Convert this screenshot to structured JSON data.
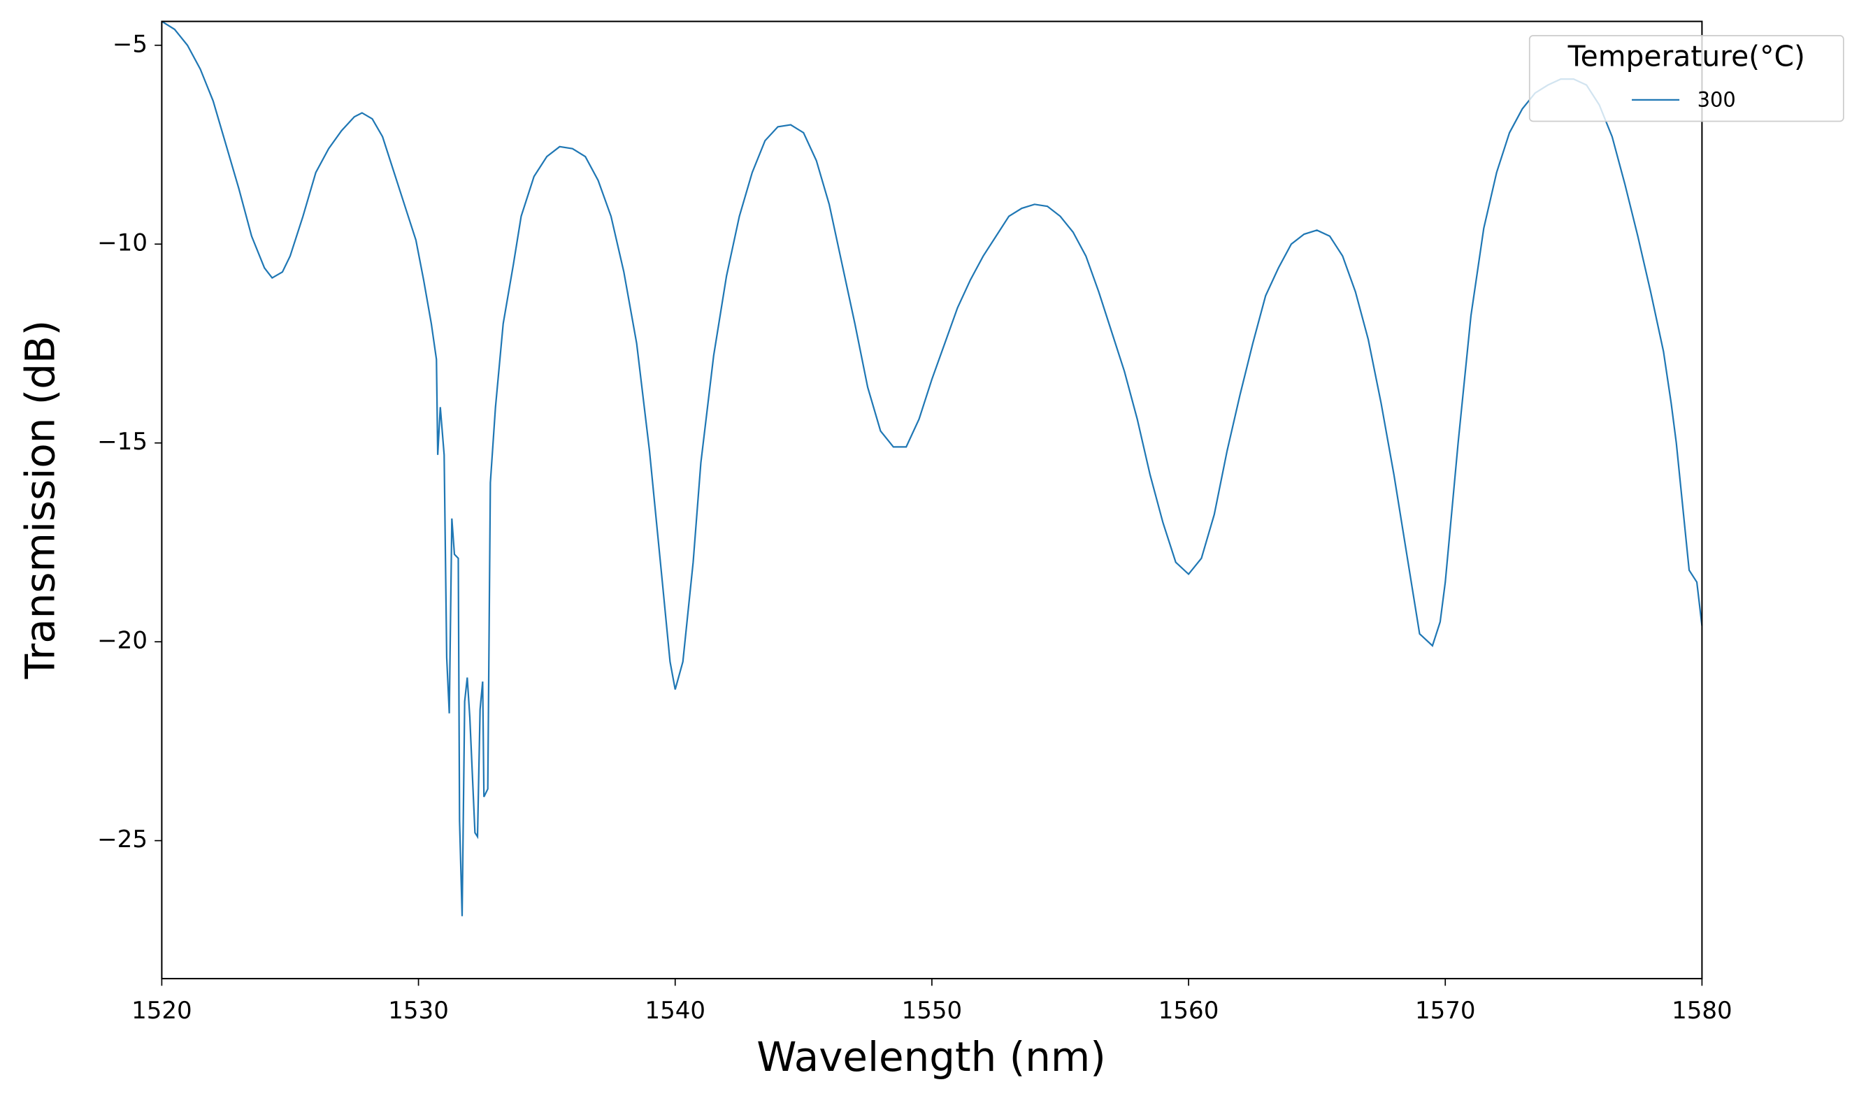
{
  "chart_data": {
    "type": "line",
    "xlabel": "Wavelength (nm)",
    "ylabel": "Transmission (dB)",
    "legend_title": "Temperature(°C)",
    "legend_loc": "upper right",
    "xlim": [
      1520,
      1580
    ],
    "ylim": [
      -28.47,
      -4.4
    ],
    "xticks": [
      1520,
      1530,
      1540,
      1550,
      1560,
      1570,
      1580
    ],
    "yticks": [
      {
        "value": -5,
        "label": "−5"
      },
      {
        "value": -10,
        "label": "−10"
      },
      {
        "value": -15,
        "label": "−15"
      },
      {
        "value": -20,
        "label": "−20"
      },
      {
        "value": -25,
        "label": "−25"
      }
    ],
    "x": [
      1520,
      1520.5,
      1521,
      1521.5,
      1522,
      1522.5,
      1523,
      1523.5,
      1524,
      1524.3,
      1524.7,
      1525,
      1525.5,
      1526,
      1526.5,
      1527,
      1527.5,
      1527.8,
      1528.2,
      1528.6,
      1529,
      1529.5,
      1529.9,
      1530.2,
      1530.5,
      1530.7,
      1530.75,
      1530.85,
      1531,
      1531.1,
      1531.2,
      1531.3,
      1531.4,
      1531.55,
      1531.6,
      1531.7,
      1531.8,
      1531.9,
      1532,
      1532.2,
      1532.3,
      1532.4,
      1532.5,
      1532.55,
      1532.7,
      1532.8,
      1533,
      1533.3,
      1533.7,
      1534,
      1534.5,
      1535,
      1535.5,
      1536,
      1536.5,
      1537,
      1537.5,
      1538,
      1538.5,
      1539,
      1539.5,
      1539.8,
      1540,
      1540.3,
      1540.7,
      1541,
      1541.5,
      1542,
      1542.5,
      1543,
      1543.5,
      1544,
      1544.5,
      1545,
      1545.5,
      1546,
      1546.5,
      1547,
      1547.5,
      1548,
      1548.5,
      1549,
      1549.5,
      1550,
      1550.5,
      1551,
      1551.5,
      1552,
      1552.5,
      1553,
      1553.5,
      1554,
      1554.5,
      1555,
      1555.5,
      1556,
      1556.5,
      1557,
      1557.5,
      1558,
      1558.5,
      1559,
      1559.5,
      1560,
      1560.5,
      1561,
      1561.5,
      1562,
      1562.5,
      1563,
      1563.5,
      1564,
      1564.5,
      1565,
      1565.5,
      1566,
      1566.5,
      1567,
      1567.5,
      1568,
      1568.5,
      1569,
      1569.5,
      1569.8,
      1570,
      1570.5,
      1571,
      1571.5,
      1572,
      1572.5,
      1573,
      1573.5,
      1574,
      1574.5,
      1575,
      1575.5,
      1576,
      1576.5,
      1577,
      1577.5,
      1578,
      1578.5,
      1578.8,
      1579,
      1579.5,
      1579.8,
      1580
    ],
    "series": [
      {
        "name": "300",
        "color": "#1f77b4",
        "values": [
          -4.4,
          -4.6,
          -5.0,
          -5.6,
          -6.4,
          -7.5,
          -8.6,
          -9.8,
          -10.6,
          -10.85,
          -10.7,
          -10.3,
          -9.3,
          -8.2,
          -7.6,
          -7.15,
          -6.8,
          -6.7,
          -6.85,
          -7.3,
          -8.1,
          -9.1,
          -9.9,
          -10.9,
          -12.0,
          -12.9,
          -15.3,
          -14.1,
          -15.3,
          -20.4,
          -21.8,
          -16.9,
          -17.8,
          -17.9,
          -24.5,
          -26.9,
          -21.5,
          -20.9,
          -21.9,
          -24.8,
          -24.9,
          -21.7,
          -21.0,
          -23.9,
          -23.7,
          -16.0,
          -14.1,
          -12.0,
          -10.5,
          -9.3,
          -8.3,
          -7.8,
          -7.55,
          -7.6,
          -7.8,
          -8.4,
          -9.3,
          -10.7,
          -12.5,
          -15.2,
          -18.5,
          -20.5,
          -21.2,
          -20.5,
          -18.0,
          -15.5,
          -12.8,
          -10.8,
          -9.3,
          -8.2,
          -7.4,
          -7.05,
          -7.0,
          -7.2,
          -7.9,
          -9.0,
          -10.5,
          -12.0,
          -13.6,
          -14.7,
          -15.1,
          -15.1,
          -14.4,
          -13.4,
          -12.5,
          -11.6,
          -10.9,
          -10.3,
          -9.8,
          -9.3,
          -9.1,
          -9.0,
          -9.05,
          -9.3,
          -9.7,
          -10.3,
          -11.2,
          -12.2,
          -13.2,
          -14.4,
          -15.8,
          -17.0,
          -18.0,
          -18.3,
          -17.9,
          -16.8,
          -15.2,
          -13.8,
          -12.5,
          -11.3,
          -10.6,
          -10.0,
          -9.75,
          -9.65,
          -9.8,
          -10.3,
          -11.2,
          -12.4,
          -14.0,
          -15.8,
          -17.8,
          -19.8,
          -20.1,
          -19.5,
          -18.5,
          -15.0,
          -11.8,
          -9.6,
          -8.2,
          -7.2,
          -6.6,
          -6.2,
          -6.0,
          -5.85,
          -5.85,
          -6.0,
          -6.5,
          -7.3,
          -8.5,
          -9.8,
          -11.2,
          -12.7,
          -14.0,
          -15.0,
          -18.2,
          -18.5,
          -19.6
        ]
      }
    ]
  }
}
